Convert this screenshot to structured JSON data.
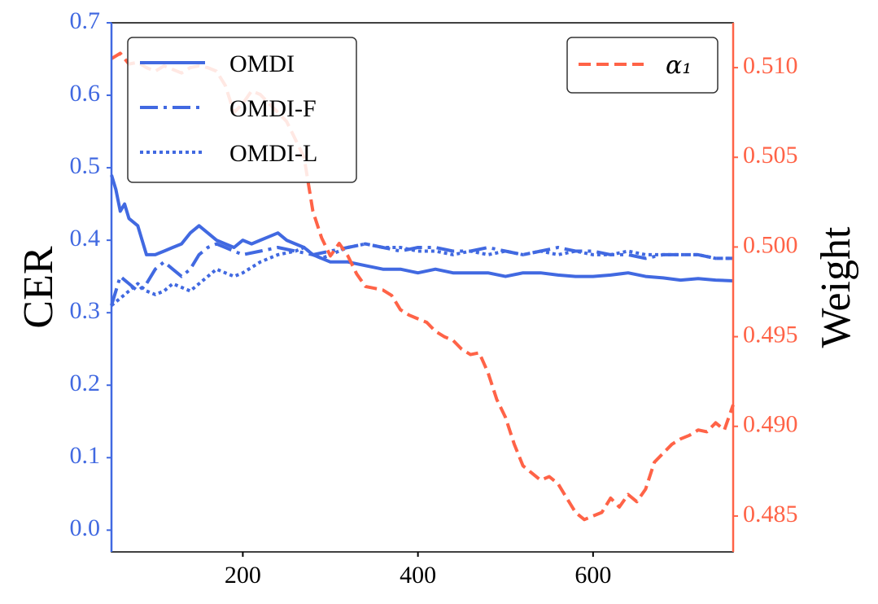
{
  "chart_data": {
    "type": "line",
    "xlabel": "",
    "ylabel_left": "CER",
    "ylabel_right": "Weight",
    "xlim": [
      50,
      760
    ],
    "ylim_left": [
      -0.03,
      0.7
    ],
    "ylim_right": [
      0.483,
      0.5125
    ],
    "xticks": [
      200,
      400,
      600
    ],
    "yticks_left": [
      "0.0",
      "0.1",
      "0.2",
      "0.3",
      "0.4",
      "0.5",
      "0.6",
      "0.7"
    ],
    "yticks_right": [
      "0.485",
      "0.490",
      "0.495",
      "0.500",
      "0.505",
      "0.510"
    ],
    "grid": false,
    "colors": {
      "left_axis": "#4169e1",
      "right_axis": "#ff6347",
      "cer_lines": "#4169e1",
      "weight_line": "#ff6347"
    },
    "legend_left": {
      "placement": "top-left",
      "entries": [
        "OMDI",
        "OMDI-F",
        "OMDI-L"
      ]
    },
    "legend_right": {
      "placement": "top-right",
      "entries": [
        "α₁"
      ]
    },
    "series": [
      {
        "name": "OMDI",
        "axis": "left",
        "style": "solid",
        "x": [
          50,
          55,
          60,
          65,
          70,
          80,
          90,
          100,
          110,
          120,
          130,
          140,
          150,
          160,
          170,
          180,
          190,
          200,
          210,
          220,
          230,
          240,
          250,
          260,
          270,
          280,
          290,
          300,
          320,
          340,
          360,
          380,
          400,
          420,
          440,
          460,
          480,
          500,
          520,
          540,
          560,
          580,
          600,
          620,
          640,
          660,
          680,
          700,
          720,
          740,
          760
        ],
        "y": [
          0.49,
          0.47,
          0.44,
          0.45,
          0.43,
          0.42,
          0.38,
          0.38,
          0.385,
          0.39,
          0.395,
          0.41,
          0.42,
          0.41,
          0.4,
          0.395,
          0.39,
          0.4,
          0.395,
          0.4,
          0.405,
          0.41,
          0.4,
          0.395,
          0.39,
          0.38,
          0.375,
          0.37,
          0.37,
          0.365,
          0.36,
          0.36,
          0.355,
          0.36,
          0.355,
          0.355,
          0.355,
          0.35,
          0.355,
          0.355,
          0.352,
          0.35,
          0.35,
          0.352,
          0.355,
          0.35,
          0.348,
          0.345,
          0.347,
          0.345,
          0.344
        ]
      },
      {
        "name": "OMDI-F",
        "axis": "left",
        "style": "dashdot",
        "x": [
          50,
          60,
          70,
          80,
          90,
          100,
          110,
          120,
          130,
          140,
          150,
          160,
          170,
          180,
          190,
          200,
          220,
          240,
          260,
          280,
          300,
          320,
          340,
          360,
          380,
          400,
          420,
          440,
          460,
          480,
          500,
          520,
          540,
          560,
          580,
          600,
          620,
          640,
          660,
          680,
          700,
          720,
          740,
          760
        ],
        "y": [
          0.31,
          0.35,
          0.34,
          0.33,
          0.34,
          0.36,
          0.37,
          0.36,
          0.35,
          0.36,
          0.38,
          0.39,
          0.395,
          0.39,
          0.385,
          0.38,
          0.385,
          0.39,
          0.385,
          0.38,
          0.385,
          0.39,
          0.395,
          0.39,
          0.385,
          0.39,
          0.39,
          0.385,
          0.385,
          0.39,
          0.385,
          0.38,
          0.385,
          0.39,
          0.385,
          0.385,
          0.38,
          0.38,
          0.375,
          0.38,
          0.38,
          0.38,
          0.375,
          0.375
        ]
      },
      {
        "name": "OMDI-L",
        "axis": "left",
        "style": "dotted",
        "x": [
          50,
          60,
          70,
          80,
          90,
          100,
          110,
          120,
          130,
          140,
          150,
          160,
          170,
          180,
          190,
          200,
          220,
          240,
          260,
          270,
          280,
          290,
          300,
          320,
          340,
          360,
          380,
          400,
          420,
          440,
          460,
          480,
          500,
          520,
          540,
          560,
          580,
          600,
          620,
          640,
          660,
          680,
          700,
          720,
          740,
          760
        ],
        "y": [
          0.31,
          0.32,
          0.33,
          0.34,
          0.33,
          0.325,
          0.33,
          0.34,
          0.335,
          0.33,
          0.34,
          0.35,
          0.36,
          0.355,
          0.35,
          0.355,
          0.37,
          0.38,
          0.385,
          0.39,
          0.38,
          0.375,
          0.38,
          0.39,
          0.395,
          0.39,
          0.39,
          0.385,
          0.385,
          0.38,
          0.385,
          0.38,
          0.385,
          0.38,
          0.385,
          0.38,
          0.385,
          0.38,
          0.38,
          0.385,
          0.38,
          0.38,
          0.38,
          0.38,
          0.375,
          0.375
        ]
      },
      {
        "name": "α₁",
        "axis": "right",
        "style": "dashed",
        "x": [
          50,
          60,
          70,
          80,
          90,
          100,
          110,
          120,
          130,
          140,
          150,
          160,
          170,
          180,
          190,
          200,
          210,
          220,
          230,
          240,
          250,
          260,
          270,
          280,
          290,
          300,
          310,
          320,
          330,
          340,
          350,
          360,
          370,
          380,
          390,
          400,
          410,
          420,
          430,
          440,
          450,
          460,
          470,
          480,
          490,
          500,
          510,
          520,
          530,
          540,
          550,
          560,
          570,
          580,
          590,
          600,
          610,
          620,
          630,
          640,
          650,
          660,
          670,
          680,
          690,
          700,
          710,
          720,
          730,
          740,
          750,
          760
        ],
        "y": [
          0.5105,
          0.5108,
          0.5102,
          0.5103,
          0.51,
          0.5098,
          0.5101,
          0.5099,
          0.5097,
          0.51,
          0.5101,
          0.51,
          0.5098,
          0.509,
          0.5075,
          0.508,
          0.5087,
          0.5085,
          0.508,
          0.5075,
          0.507,
          0.506,
          0.505,
          0.502,
          0.5005,
          0.4995,
          0.5002,
          0.4995,
          0.4985,
          0.4978,
          0.4977,
          0.4976,
          0.4973,
          0.4965,
          0.4962,
          0.496,
          0.4958,
          0.4953,
          0.495,
          0.4948,
          0.4943,
          0.494,
          0.4941,
          0.493,
          0.4915,
          0.4905,
          0.489,
          0.4878,
          0.4874,
          0.487,
          0.4872,
          0.4868,
          0.486,
          0.4852,
          0.4848,
          0.485,
          0.4852,
          0.486,
          0.4855,
          0.4862,
          0.4858,
          0.4865,
          0.488,
          0.4885,
          0.489,
          0.4893,
          0.4895,
          0.4898,
          0.4897,
          0.4902,
          0.4898,
          0.4912
        ]
      }
    ]
  }
}
